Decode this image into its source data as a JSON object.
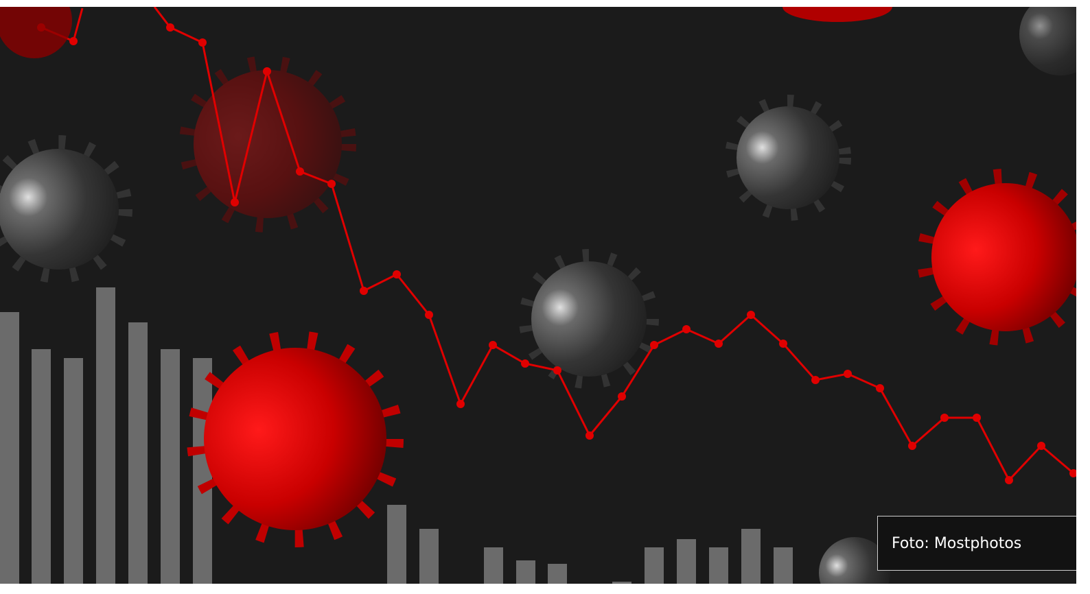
{
  "caption": "Foto: Mostphotos"
}
